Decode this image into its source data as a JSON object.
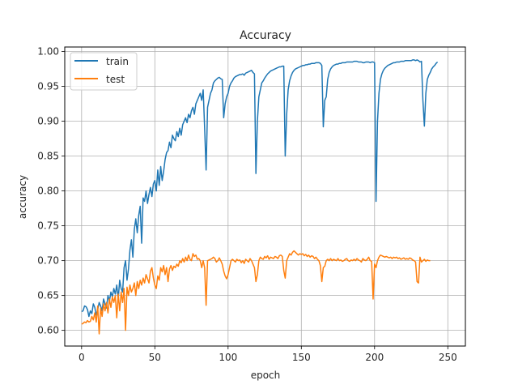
{
  "chart_data": {
    "type": "line",
    "title": "Accuracy",
    "xlabel": "epoch",
    "ylabel": "accuracy",
    "xlim": [
      -11.5,
      262
    ],
    "ylim": [
      0.5775,
      1.0065
    ],
    "xticks": [
      0,
      50,
      100,
      150,
      200,
      250
    ],
    "xtick_labels": [
      "0",
      "50",
      "100",
      "150",
      "200",
      "250"
    ],
    "yticks": [
      0.6,
      0.65,
      0.7,
      0.75,
      0.8,
      0.85,
      0.9,
      0.95,
      1.0
    ],
    "ytick_labels": [
      "0.60",
      "0.65",
      "0.70",
      "0.75",
      "0.80",
      "0.85",
      "0.90",
      "0.95",
      "1.00"
    ],
    "grid": true,
    "legend_position": "upper left",
    "series": [
      {
        "name": "train",
        "color": "#1f77b4",
        "values": [
          0.627,
          0.628,
          0.635,
          0.634,
          0.63,
          0.62,
          0.628,
          0.624,
          0.638,
          0.633,
          0.622,
          0.63,
          0.64,
          0.635,
          0.628,
          0.645,
          0.638,
          0.632,
          0.65,
          0.642,
          0.655,
          0.648,
          0.66,
          0.652,
          0.665,
          0.645,
          0.672,
          0.66,
          0.655,
          0.69,
          0.7,
          0.672,
          0.688,
          0.715,
          0.73,
          0.705,
          0.745,
          0.76,
          0.74,
          0.765,
          0.778,
          0.725,
          0.79,
          0.785,
          0.8,
          0.782,
          0.795,
          0.805,
          0.792,
          0.81,
          0.815,
          0.8,
          0.83,
          0.808,
          0.835,
          0.815,
          0.828,
          0.845,
          0.855,
          0.858,
          0.87,
          0.862,
          0.88,
          0.875,
          0.872,
          0.885,
          0.878,
          0.89,
          0.88,
          0.895,
          0.9,
          0.905,
          0.898,
          0.91,
          0.905,
          0.915,
          0.92,
          0.91,
          0.925,
          0.93,
          0.935,
          0.94,
          0.93,
          0.945,
          0.89,
          0.83,
          0.92,
          0.93,
          0.94,
          0.945,
          0.955,
          0.958,
          0.96,
          0.962,
          0.963,
          0.961,
          0.96,
          0.905,
          0.925,
          0.935,
          0.94,
          0.95,
          0.955,
          0.958,
          0.962,
          0.964,
          0.965,
          0.966,
          0.967,
          0.967,
          0.968,
          0.966,
          0.969,
          0.97,
          0.971,
          0.972,
          0.973,
          0.97,
          0.968,
          0.825,
          0.9,
          0.935,
          0.945,
          0.955,
          0.958,
          0.962,
          0.965,
          0.968,
          0.97,
          0.972,
          0.973,
          0.974,
          0.975,
          0.976,
          0.977,
          0.978,
          0.978,
          0.979,
          0.979,
          0.85,
          0.91,
          0.945,
          0.958,
          0.965,
          0.97,
          0.973,
          0.975,
          0.976,
          0.977,
          0.978,
          0.979,
          0.98,
          0.98,
          0.981,
          0.981,
          0.982,
          0.982,
          0.983,
          0.983,
          0.983,
          0.984,
          0.984,
          0.984,
          0.983,
          0.98,
          0.892,
          0.93,
          0.935,
          0.96,
          0.97,
          0.975,
          0.978,
          0.98,
          0.981,
          0.982,
          0.982,
          0.983,
          0.983,
          0.984,
          0.984,
          0.984,
          0.985,
          0.985,
          0.985,
          0.985,
          0.985,
          0.986,
          0.986,
          0.986,
          0.985,
          0.985,
          0.985,
          0.984,
          0.984,
          0.985,
          0.985,
          0.985,
          0.984,
          0.985,
          0.985,
          0.984,
          0.785,
          0.9,
          0.94,
          0.96,
          0.968,
          0.973,
          0.976,
          0.978,
          0.98,
          0.981,
          0.982,
          0.983,
          0.984,
          0.984,
          0.985,
          0.985,
          0.985,
          0.986,
          0.986,
          0.986,
          0.987,
          0.987,
          0.987,
          0.987,
          0.987,
          0.988,
          0.988,
          0.987,
          0.988,
          0.987,
          0.985,
          0.986,
          0.93,
          0.893,
          0.94,
          0.96,
          0.966,
          0.97,
          0.975,
          0.978,
          0.98,
          0.983,
          0.985
        ]
      },
      {
        "name": "test",
        "color": "#ff7f0e",
        "values": [
          0.609,
          0.61,
          0.612,
          0.611,
          0.614,
          0.612,
          0.613,
          0.62,
          0.615,
          0.625,
          0.612,
          0.635,
          0.595,
          0.632,
          0.62,
          0.638,
          0.628,
          0.64,
          0.625,
          0.645,
          0.633,
          0.648,
          0.64,
          0.65,
          0.618,
          0.652,
          0.628,
          0.655,
          0.64,
          0.66,
          0.6,
          0.662,
          0.65,
          0.665,
          0.655,
          0.66,
          0.668,
          0.65,
          0.67,
          0.66,
          0.672,
          0.665,
          0.675,
          0.668,
          0.68,
          0.674,
          0.668,
          0.685,
          0.69,
          0.675,
          0.665,
          0.66,
          0.678,
          0.672,
          0.69,
          0.684,
          0.693,
          0.68,
          0.69,
          0.67,
          0.688,
          0.693,
          0.686,
          0.692,
          0.69,
          0.695,
          0.692,
          0.7,
          0.697,
          0.703,
          0.698,
          0.705,
          0.7,
          0.708,
          0.702,
          0.7,
          0.71,
          0.706,
          0.708,
          0.702,
          0.703,
          0.7,
          0.69,
          0.7,
          0.69,
          0.636,
          0.7,
          0.701,
          0.702,
          0.703,
          0.705,
          0.703,
          0.698,
          0.7,
          0.704,
          0.7,
          0.695,
          0.685,
          0.678,
          0.674,
          0.68,
          0.69,
          0.7,
          0.702,
          0.7,
          0.698,
          0.702,
          0.7,
          0.701,
          0.697,
          0.7,
          0.696,
          0.702,
          0.7,
          0.698,
          0.703,
          0.7,
          0.695,
          0.69,
          0.67,
          0.68,
          0.7,
          0.705,
          0.703,
          0.702,
          0.706,
          0.704,
          0.707,
          0.702,
          0.705,
          0.704,
          0.703,
          0.706,
          0.705,
          0.703,
          0.707,
          0.708,
          0.706,
          0.686,
          0.675,
          0.7,
          0.705,
          0.71,
          0.708,
          0.712,
          0.714,
          0.712,
          0.71,
          0.708,
          0.71,
          0.709,
          0.71,
          0.707,
          0.709,
          0.706,
          0.708,
          0.705,
          0.707,
          0.706,
          0.703,
          0.705,
          0.702,
          0.7,
          0.693,
          0.67,
          0.69,
          0.692,
          0.7,
          0.702,
          0.7,
          0.703,
          0.7,
          0.702,
          0.701,
          0.7,
          0.703,
          0.7,
          0.701,
          0.699,
          0.7,
          0.702,
          0.703,
          0.7,
          0.699,
          0.701,
          0.7,
          0.702,
          0.7,
          0.703,
          0.701,
          0.7,
          0.698,
          0.703,
          0.701,
          0.7,
          0.702,
          0.705,
          0.7,
          0.699,
          0.645,
          0.695,
          0.69,
          0.7,
          0.705,
          0.708,
          0.707,
          0.706,
          0.705,
          0.706,
          0.705,
          0.704,
          0.705,
          0.703,
          0.705,
          0.704,
          0.705,
          0.703,
          0.704,
          0.702,
          0.703,
          0.704,
          0.702,
          0.703,
          0.702,
          0.704,
          0.703,
          0.701,
          0.7,
          0.698,
          0.67,
          0.668,
          0.705,
          0.698,
          0.7,
          0.702,
          0.699,
          0.701,
          0.7,
          0.7
        ]
      }
    ]
  },
  "plot": {
    "title": "Accuracy",
    "xlabel": "epoch",
    "ylabel": "accuracy",
    "legend": [
      {
        "label": "train",
        "color": "#1f77b4"
      },
      {
        "label": "test",
        "color": "#ff7f0e"
      }
    ]
  }
}
